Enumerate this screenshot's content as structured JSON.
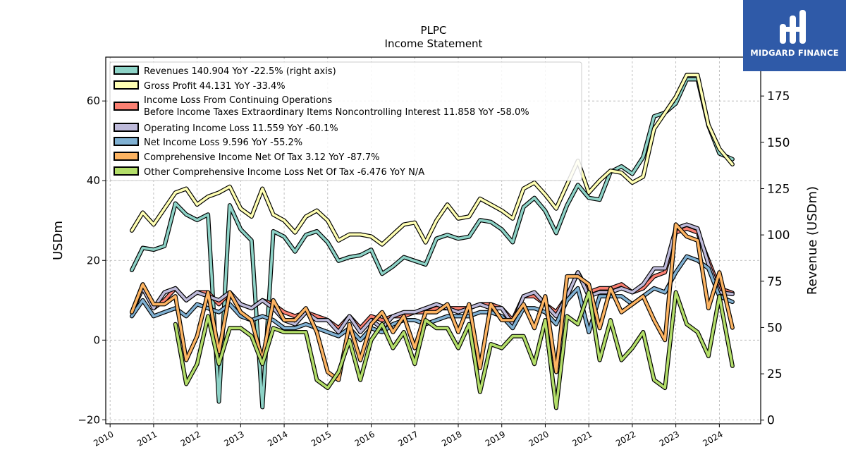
{
  "brand": {
    "name": "MIDGARD FINANCE",
    "color": "#2f5aa8"
  },
  "chart_data": {
    "type": "line",
    "title": "PLPC",
    "subtitle": "Income Statement",
    "ylabel_left": "USDm",
    "ylabel_right": "Revenue (USDm)",
    "ylim_left": [
      -21,
      71
    ],
    "ylim_right": [
      -2,
      196
    ],
    "yticks_left": [
      -20,
      0,
      20,
      40,
      60
    ],
    "yticks_right": [
      0,
      25,
      50,
      75,
      100,
      125,
      150,
      175
    ],
    "xlim": [
      2009.9,
      2024.95
    ],
    "xticks": [
      2010,
      2011,
      2012,
      2013,
      2014,
      2015,
      2016,
      2017,
      2018,
      2019,
      2020,
      2021,
      2022,
      2023,
      2024
    ],
    "grid": true,
    "legend_position": "top-left",
    "series": [
      {
        "name": "Revenues",
        "legend": "Revenues  140.904 YoY -22.5% (right axis)",
        "axis": "right",
        "color": "#8dd3c7",
        "x": [
          2010.5,
          2010.75,
          2011,
          2011.25,
          2011.5,
          2011.75,
          2012,
          2012.25,
          2012.5,
          2012.75,
          2013,
          2013.25,
          2013.5,
          2013.75,
          2014,
          2014.25,
          2014.5,
          2014.75,
          2015,
          2015.25,
          2015.5,
          2015.75,
          2016,
          2016.25,
          2016.5,
          2016.75,
          2017,
          2017.25,
          2017.5,
          2017.75,
          2018,
          2018.25,
          2018.5,
          2018.75,
          2019,
          2019.25,
          2019.5,
          2019.75,
          2020,
          2020.25,
          2020.5,
          2020.75,
          2021,
          2021.25,
          2021.5,
          2021.75,
          2022,
          2022.25,
          2022.5,
          2022.75,
          2023,
          2023.25,
          2023.5,
          2023.75,
          2024,
          2024.3
        ],
        "y": [
          81,
          93,
          92,
          94,
          117,
          111,
          108,
          111,
          10,
          116,
          103,
          97,
          7,
          102,
          99,
          91,
          100,
          102,
          96,
          86,
          88,
          89,
          92,
          79,
          83,
          88,
          86,
          84,
          98,
          100,
          98,
          99,
          108,
          107,
          103,
          96,
          115,
          120,
          113,
          101,
          116,
          127,
          120,
          119,
          134,
          137,
          133,
          142,
          164,
          166,
          171,
          184,
          184,
          159,
          144,
          140.9
        ]
      },
      {
        "name": "Gross Profit",
        "legend": "Gross Profit  44.131 YoY -33.4%",
        "axis": "left",
        "color": "#ffffb3",
        "x": [
          2010.5,
          2010.75,
          2011,
          2011.25,
          2011.5,
          2011.75,
          2012,
          2012.25,
          2012.5,
          2012.75,
          2013,
          2013.25,
          2013.5,
          2013.75,
          2014,
          2014.25,
          2014.5,
          2014.75,
          2015,
          2015.25,
          2015.5,
          2015.75,
          2016,
          2016.25,
          2016.5,
          2016.75,
          2017,
          2017.25,
          2017.5,
          2017.75,
          2018,
          2018.25,
          2018.5,
          2018.75,
          2019,
          2019.25,
          2019.5,
          2019.75,
          2020,
          2020.25,
          2020.5,
          2020.75,
          2021,
          2021.25,
          2021.5,
          2021.75,
          2022,
          2022.25,
          2022.5,
          2022.75,
          2023,
          2023.25,
          2023.5,
          2023.75,
          2024,
          2024.3
        ],
        "y": [
          27.5,
          32,
          29,
          33,
          37,
          38,
          34,
          36,
          37,
          38.5,
          33,
          31,
          38,
          31.5,
          30,
          27,
          31,
          32.5,
          30,
          25,
          26.5,
          26.5,
          26,
          24,
          26.5,
          29,
          29.5,
          24.5,
          30,
          34,
          30.5,
          31,
          35.5,
          34,
          32.5,
          30.5,
          38,
          39.5,
          36.5,
          33,
          39,
          45,
          37,
          40,
          42.5,
          42,
          39.5,
          41,
          53,
          57,
          61,
          66.5,
          66.5,
          54,
          48,
          44.1
        ]
      },
      {
        "name": "Income Loss From Continuing Operations Before Income Taxes Extraordinary Items Noncontrolling Interest",
        "legend_line1": "Income Loss From Continuing Operations",
        "legend_line2": "Before Income Taxes Extraordinary Items Noncontrolling Interest  11.858 YoY -58.0%",
        "axis": "left",
        "color": "#fb8072",
        "x": [
          2010.5,
          2010.75,
          2011,
          2011.25,
          2011.5,
          2011.75,
          2012,
          2012.25,
          2012.5,
          2012.75,
          2013,
          2013.25,
          2013.5,
          2013.75,
          2014,
          2014.25,
          2014.5,
          2014.75,
          2015,
          2015.25,
          2015.5,
          2015.75,
          2016,
          2016.25,
          2016.5,
          2016.75,
          2017,
          2017.25,
          2017.5,
          2017.75,
          2018,
          2018.25,
          2018.5,
          2018.75,
          2019,
          2019.25,
          2019.5,
          2019.75,
          2020,
          2020.25,
          2020.5,
          2020.75,
          2021,
          2021.25,
          2021.5,
          2021.75,
          2022,
          2022.25,
          2022.5,
          2022.75,
          2023,
          2023.25,
          2023.5,
          2023.75,
          2024,
          2024.3
        ],
        "y": [
          7,
          14,
          8,
          10,
          13,
          10,
          12,
          12,
          9,
          12,
          9,
          8,
          10,
          9,
          7,
          6,
          7,
          6,
          5,
          3,
          6,
          3,
          6,
          5,
          6,
          6,
          7,
          7,
          8,
          8,
          8,
          8,
          9,
          9,
          8,
          5,
          11,
          11,
          9,
          7,
          11,
          17,
          12,
          13,
          13,
          14,
          12,
          13,
          16,
          17,
          27,
          28,
          27,
          20,
          13,
          11.858
        ]
      },
      {
        "name": "Operating Income Loss",
        "legend": "Operating Income Loss  11.559 YoY -60.1%",
        "axis": "left",
        "color": "#bebada",
        "x": [
          2010.5,
          2010.75,
          2011,
          2011.25,
          2011.5,
          2011.75,
          2012,
          2012.25,
          2012.5,
          2012.75,
          2013,
          2013.25,
          2013.5,
          2013.75,
          2014,
          2014.25,
          2014.5,
          2014.75,
          2015,
          2015.25,
          2015.5,
          2015.75,
          2016,
          2016.25,
          2016.5,
          2016.75,
          2017,
          2017.25,
          2017.5,
          2017.75,
          2018,
          2018.25,
          2018.5,
          2018.75,
          2019,
          2019.25,
          2019.5,
          2019.75,
          2020,
          2020.25,
          2020.5,
          2020.75,
          2021,
          2021.25,
          2021.5,
          2021.75,
          2022,
          2022.25,
          2022.5,
          2022.75,
          2023,
          2023.25,
          2023.5,
          2023.75,
          2024,
          2024.3
        ],
        "y": [
          7,
          13,
          8,
          12,
          13,
          10,
          12,
          11,
          10,
          12,
          9,
          8,
          10,
          8,
          5,
          4,
          7,
          5,
          5,
          2,
          6,
          2,
          5,
          3,
          6,
          7,
          7,
          8,
          9,
          8,
          7,
          8,
          9,
          8,
          8,
          4,
          11,
          12,
          9,
          6,
          11,
          17,
          11,
          12,
          12,
          13,
          12,
          14,
          18,
          18,
          28,
          29,
          28,
          19,
          12,
          11.559
        ]
      },
      {
        "name": "Net Income Loss",
        "legend": "Net Income Loss  9.596 YoY -55.2%",
        "axis": "left",
        "color": "#80b1d3",
        "x": [
          2010.5,
          2010.75,
          2011,
          2011.25,
          2011.5,
          2011.75,
          2012,
          2012.25,
          2012.5,
          2012.75,
          2013,
          2013.25,
          2013.5,
          2013.75,
          2014,
          2014.25,
          2014.5,
          2014.75,
          2015,
          2015.25,
          2015.5,
          2015.75,
          2016,
          2016.25,
          2016.5,
          2016.75,
          2017,
          2017.25,
          2017.5,
          2017.75,
          2018,
          2018.25,
          2018.5,
          2018.75,
          2019,
          2019.25,
          2019.5,
          2019.75,
          2020,
          2020.25,
          2020.5,
          2020.75,
          2021,
          2021.25,
          2021.5,
          2021.75,
          2022,
          2022.25,
          2022.5,
          2022.75,
          2023,
          2023.25,
          2023.5,
          2023.75,
          2024,
          2024.3
        ],
        "y": [
          6,
          10,
          6,
          7,
          8,
          6,
          9,
          8,
          7,
          9,
          6,
          5,
          6,
          5,
          3,
          3,
          4,
          3,
          2,
          1,
          3,
          0,
          3,
          2,
          4,
          5,
          5,
          4,
          5,
          6,
          6,
          6,
          7,
          7,
          6,
          3,
          8,
          8,
          7,
          4,
          10,
          13,
          2,
          11,
          11,
          11,
          9,
          11,
          13,
          12,
          17,
          21,
          20,
          18,
          11,
          9.596
        ]
      },
      {
        "name": "Comprehensive Income Net Of Tax",
        "legend": "Comprehensive Income Net Of Tax  3.12 YoY -87.7%",
        "axis": "left",
        "color": "#fdb462",
        "x": [
          2010.5,
          2010.75,
          2011,
          2011.25,
          2011.5,
          2011.75,
          2012,
          2012.25,
          2012.5,
          2012.75,
          2013,
          2013.25,
          2013.5,
          2013.75,
          2014,
          2014.25,
          2014.5,
          2014.75,
          2015,
          2015.25,
          2015.5,
          2015.75,
          2016,
          2016.25,
          2016.5,
          2016.75,
          2017,
          2017.25,
          2017.5,
          2017.75,
          2018,
          2018.25,
          2018.5,
          2018.75,
          2019,
          2019.25,
          2019.5,
          2019.75,
          2020,
          2020.25,
          2020.5,
          2020.75,
          2021,
          2021.25,
          2021.5,
          2021.75,
          2022,
          2022.25,
          2022.5,
          2022.75,
          2023,
          2023.25,
          2023.5,
          2023.75,
          2024,
          2024.3
        ],
        "y": [
          7,
          14,
          9,
          9,
          11,
          -5,
          1,
          12,
          -3,
          12,
          7,
          5,
          -5,
          10,
          5,
          5,
          8,
          2,
          -8,
          -10,
          4,
          -5,
          4,
          7,
          2,
          6,
          -2,
          7,
          7,
          9,
          2,
          9,
          -7,
          9,
          5,
          5,
          9,
          3,
          11,
          -8,
          16,
          16,
          14,
          3,
          13,
          7,
          9,
          11,
          5,
          0,
          29,
          26,
          25,
          8,
          17,
          3.12
        ]
      },
      {
        "name": "Other Comprehensive Income Loss Net Of Tax",
        "legend": "Other Comprehensive Income Loss Net Of Tax  -6.476 YoY N/A",
        "axis": "left",
        "color": "#b3de69",
        "x": [
          2011.5,
          2011.75,
          2012,
          2012.25,
          2012.5,
          2012.75,
          2013,
          2013.25,
          2013.5,
          2013.75,
          2014,
          2014.25,
          2014.5,
          2014.75,
          2015,
          2015.25,
          2015.5,
          2015.75,
          2016,
          2016.25,
          2016.5,
          2016.75,
          2017,
          2017.25,
          2017.5,
          2017.75,
          2018,
          2018.25,
          2018.5,
          2018.75,
          2019,
          2019.25,
          2019.5,
          2019.75,
          2020,
          2020.25,
          2020.5,
          2020.75,
          2021,
          2021.25,
          2021.5,
          2021.75,
          2022,
          2022.25,
          2022.5,
          2022.75,
          2023,
          2023.25,
          2023.5,
          2023.75,
          2024,
          2024.3
        ],
        "y": [
          4,
          -11,
          -6,
          6,
          -6,
          3,
          3,
          1,
          -6,
          3,
          2,
          2,
          2,
          -10,
          -12,
          -8,
          0,
          -10,
          0,
          4,
          -2,
          2,
          -6,
          5,
          3,
          3,
          -2,
          4,
          -13,
          -1,
          -2,
          1,
          1,
          -6,
          5,
          -17,
          6,
          4,
          12,
          -5,
          5,
          -5,
          -2,
          2,
          -10,
          -12,
          12,
          4,
          2,
          -4,
          11,
          -6.476
        ]
      }
    ]
  }
}
